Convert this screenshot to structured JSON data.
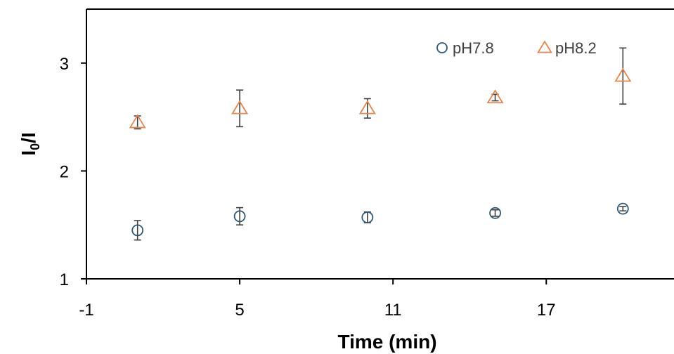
{
  "chart_data": {
    "type": "scatter",
    "title": "",
    "xlabel": "Time (min)",
    "ylabel": {
      "main": "I",
      "sub": "0",
      "tail": "/I"
    },
    "xlim": [
      -1,
      22
    ],
    "ylim": [
      1,
      3.5
    ],
    "xticks": [
      -1,
      5,
      11,
      17
    ],
    "yticks": [
      1,
      2,
      3
    ],
    "grid": false,
    "legend_position": "top-right",
    "series": [
      {
        "name": "pH7.8",
        "marker": "circle",
        "color": "#2E5A7A",
        "x": [
          1,
          5,
          10,
          15,
          20
        ],
        "y": [
          1.45,
          1.58,
          1.57,
          1.61,
          1.65
        ],
        "err": [
          0.09,
          0.08,
          0.05,
          0.03,
          0.02
        ]
      },
      {
        "name": "pH8.2",
        "marker": "triangle",
        "color": "#E8854A",
        "x": [
          1,
          5,
          10,
          15,
          20
        ],
        "y": [
          2.45,
          2.58,
          2.58,
          2.68,
          2.88
        ],
        "err": [
          0.06,
          0.17,
          0.09,
          0.03,
          0.26
        ]
      }
    ],
    "error_bar_color": "#404040"
  }
}
